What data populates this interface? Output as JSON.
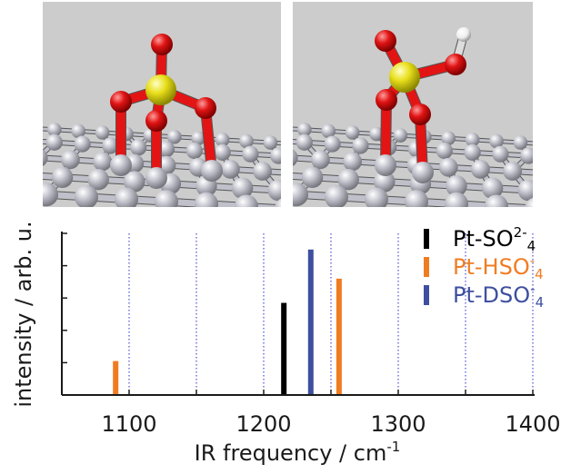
{
  "chart_data": {
    "type": "bar",
    "xlabel": "IR frequency / cm",
    "xlabel_superscript": "-1",
    "ylabel": "intensity / arb. u.",
    "xlim": [
      1050,
      1400
    ],
    "ylim": [
      0,
      1
    ],
    "xticks": [
      1100,
      1200,
      1300,
      1400
    ],
    "xtick_labels": [
      "1100",
      "1200",
      "1300",
      "1400"
    ],
    "gridlines_x": [
      1050,
      1100,
      1150,
      1200,
      1250,
      1300,
      1350,
      1400
    ],
    "grid": "vertical dotted",
    "legend_position": "top-right",
    "series": [
      {
        "name": "Pt-SO2-4",
        "label_parts": [
          "Pt-SO",
          "2-",
          "4"
        ],
        "color": "#000000",
        "x": [
          1215
        ],
        "values": [
          0.57
        ]
      },
      {
        "name": "Pt-HSO-4",
        "label_parts": [
          "Pt-HSO",
          "-",
          "4"
        ],
        "color": "#f07c22",
        "x": [
          1090,
          1256
        ],
        "values": [
          0.21,
          0.72
        ]
      },
      {
        "name": "Pt-DSO-4",
        "label_parts": [
          "Pt-DSO",
          "-",
          "4"
        ],
        "color": "#3e4fa0",
        "x": [
          1235
        ],
        "values": [
          0.9
        ]
      }
    ]
  },
  "colors": {
    "axis": "#1a1a1a",
    "grid": "#2b2bc8",
    "panel_background": "#cccccc",
    "platinum": "#b7b7c2",
    "oxygen": "#e31414",
    "sulfur": "#e8e11d",
    "hydrogen": "#f2f2f2"
  }
}
